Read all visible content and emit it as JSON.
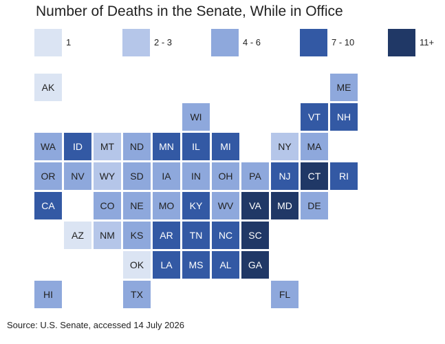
{
  "title": "Number of Deaths in the Senate, While in Office",
  "source": "Source: U.S. Senate, accessed 14 July 2026",
  "colors": {
    "1": "#dbe4f3",
    "2": "#b5c6e9",
    "3": "#8ea8dc",
    "4": "#3359a4",
    "5": "#203866"
  },
  "legend": [
    {
      "label": "1",
      "bin": 1
    },
    {
      "label": "2 - 3",
      "bin": 2
    },
    {
      "label": "4 - 6",
      "bin": 3
    },
    {
      "label": "7 - 10",
      "bin": 4
    },
    {
      "label": "11+",
      "bin": 5
    }
  ],
  "states": [
    {
      "abbr": "AK",
      "bin": 1
    },
    {
      "abbr": "ME",
      "bin": 3
    },
    {
      "abbr": "WI",
      "bin": 3
    },
    {
      "abbr": "VT",
      "bin": 4
    },
    {
      "abbr": "NH",
      "bin": 4
    },
    {
      "abbr": "WA",
      "bin": 3
    },
    {
      "abbr": "ID",
      "bin": 4
    },
    {
      "abbr": "MT",
      "bin": 2
    },
    {
      "abbr": "ND",
      "bin": 3
    },
    {
      "abbr": "MN",
      "bin": 4
    },
    {
      "abbr": "IL",
      "bin": 4
    },
    {
      "abbr": "MI",
      "bin": 4
    },
    {
      "abbr": "NY",
      "bin": 2
    },
    {
      "abbr": "MA",
      "bin": 3
    },
    {
      "abbr": "OR",
      "bin": 3
    },
    {
      "abbr": "NV",
      "bin": 3
    },
    {
      "abbr": "WY",
      "bin": 2
    },
    {
      "abbr": "SD",
      "bin": 3
    },
    {
      "abbr": "IA",
      "bin": 3
    },
    {
      "abbr": "IN",
      "bin": 3
    },
    {
      "abbr": "OH",
      "bin": 3
    },
    {
      "abbr": "PA",
      "bin": 3
    },
    {
      "abbr": "NJ",
      "bin": 4
    },
    {
      "abbr": "CT",
      "bin": 5
    },
    {
      "abbr": "RI",
      "bin": 4
    },
    {
      "abbr": "CA",
      "bin": 4
    },
    {
      "abbr": "CO",
      "bin": 3
    },
    {
      "abbr": "NE",
      "bin": 3
    },
    {
      "abbr": "MO",
      "bin": 3
    },
    {
      "abbr": "KY",
      "bin": 4
    },
    {
      "abbr": "WV",
      "bin": 3
    },
    {
      "abbr": "VA",
      "bin": 5
    },
    {
      "abbr": "MD",
      "bin": 5
    },
    {
      "abbr": "DE",
      "bin": 3
    },
    {
      "abbr": "AZ",
      "bin": 1
    },
    {
      "abbr": "NM",
      "bin": 2
    },
    {
      "abbr": "KS",
      "bin": 3
    },
    {
      "abbr": "AR",
      "bin": 4
    },
    {
      "abbr": "TN",
      "bin": 4
    },
    {
      "abbr": "NC",
      "bin": 4
    },
    {
      "abbr": "SC",
      "bin": 5
    },
    {
      "abbr": "OK",
      "bin": 1
    },
    {
      "abbr": "LA",
      "bin": 4
    },
    {
      "abbr": "MS",
      "bin": 4
    },
    {
      "abbr": "AL",
      "bin": 4
    },
    {
      "abbr": "GA",
      "bin": 5
    },
    {
      "abbr": "HI",
      "bin": 3
    },
    {
      "abbr": "TX",
      "bin": 3
    },
    {
      "abbr": "FL",
      "bin": 3
    }
  ]
}
